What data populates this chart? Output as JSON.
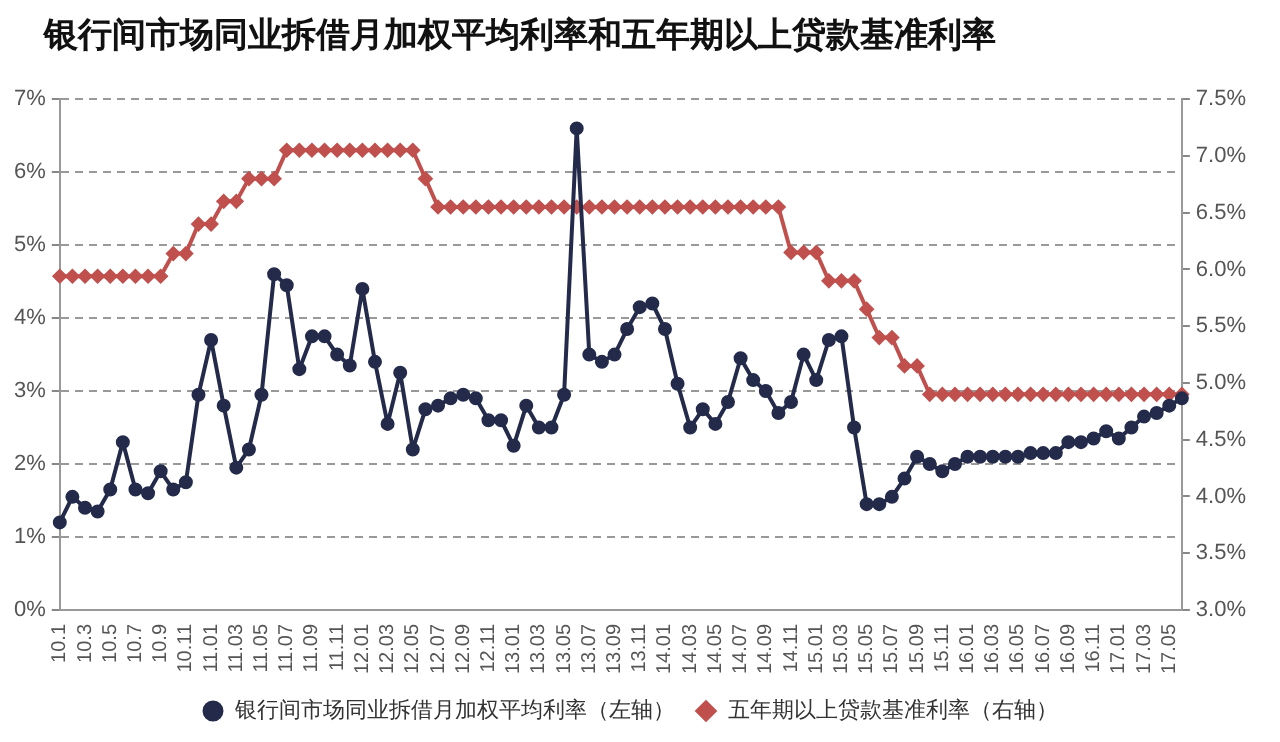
{
  "chart_data": {
    "type": "line",
    "title": "银行间市场同业拆借月加权平均利率和五年期以上贷款基准利率",
    "categories": [
      "10.1",
      null,
      "10.3",
      null,
      "10.5",
      null,
      "10.7",
      null,
      "10.9",
      null,
      "10.11",
      null,
      "11.01",
      null,
      "11.03",
      null,
      "11.05",
      null,
      "11.07",
      null,
      "11.09",
      null,
      "11.11",
      null,
      "12.01",
      null,
      "12.03",
      null,
      "12.05",
      null,
      "12.07",
      null,
      "12.09",
      null,
      "12.11",
      null,
      "13.01",
      null,
      "13.03",
      null,
      "13.05",
      null,
      "13.07",
      null,
      "13.09",
      null,
      "13.11",
      null,
      "14.01",
      null,
      "14.03",
      null,
      "14.05",
      null,
      "14.07",
      null,
      "14.09",
      null,
      "14.11",
      null,
      "15.01",
      null,
      "15.03",
      null,
      "15.05",
      null,
      "15.07",
      null,
      "15.09",
      null,
      "15.11",
      null,
      "16.01",
      null,
      "16.03",
      null,
      "16.05",
      null,
      "16.07",
      null,
      "16.09",
      null,
      "16.11",
      null,
      "17.01",
      null,
      "17.03",
      null,
      "17.05",
      null
    ],
    "series": [
      {
        "name": "银行间市场同业拆借月加权平均利率（左轴）",
        "color": "#232a4a",
        "marker": "circle",
        "values": [
          1.2,
          1.55,
          1.4,
          1.35,
          1.65,
          2.3,
          1.65,
          1.6,
          1.9,
          1.65,
          1.75,
          2.95,
          3.7,
          2.8,
          1.95,
          2.2,
          2.95,
          4.6,
          4.45,
          3.3,
          3.75,
          3.75,
          3.5,
          3.35,
          4.4,
          3.4,
          2.55,
          3.25,
          2.2,
          2.75,
          2.8,
          2.9,
          2.95,
          2.9,
          2.6,
          2.6,
          2.25,
          2.8,
          2.5,
          2.5,
          2.95,
          6.6,
          3.5,
          3.4,
          3.5,
          3.85,
          4.15,
          4.2,
          3.85,
          3.1,
          2.5,
          2.75,
          2.55,
          2.85,
          3.45,
          3.15,
          3.0,
          2.7,
          2.85,
          3.5,
          3.15,
          3.7,
          3.75,
          2.5,
          1.45,
          1.45,
          1.55,
          1.8,
          2.1,
          2.0,
          1.9,
          2.0,
          2.1,
          2.1,
          2.1,
          2.1,
          2.1,
          2.15,
          2.15,
          2.15,
          2.3,
          2.3,
          2.35,
          2.45,
          2.35,
          2.5,
          2.65,
          2.7,
          2.8,
          2.9
        ]
      },
      {
        "name": "五年期以上贷款基准利率（右轴）",
        "color": "#c0504d",
        "marker": "diamond",
        "axis": "y2",
        "values": [
          5.94,
          5.94,
          5.94,
          5.94,
          5.94,
          5.94,
          5.94,
          5.94,
          5.94,
          6.14,
          6.14,
          6.4,
          6.4,
          6.6,
          6.6,
          6.8,
          6.8,
          6.8,
          7.05,
          7.05,
          7.05,
          7.05,
          7.05,
          7.05,
          7.05,
          7.05,
          7.05,
          7.05,
          7.05,
          6.8,
          6.55,
          6.55,
          6.55,
          6.55,
          6.55,
          6.55,
          6.55,
          6.55,
          6.55,
          6.55,
          6.55,
          6.55,
          6.55,
          6.55,
          6.55,
          6.55,
          6.55,
          6.55,
          6.55,
          6.55,
          6.55,
          6.55,
          6.55,
          6.55,
          6.55,
          6.55,
          6.55,
          6.55,
          6.15,
          6.15,
          6.15,
          5.9,
          5.9,
          5.9,
          5.65,
          5.4,
          5.4,
          5.15,
          5.15,
          4.9,
          4.9,
          4.9,
          4.9,
          4.9,
          4.9,
          4.9,
          4.9,
          4.9,
          4.9,
          4.9,
          4.9,
          4.9,
          4.9,
          4.9,
          4.9,
          4.9,
          4.9,
          4.9,
          4.9,
          4.9
        ]
      }
    ],
    "ylim": [
      0,
      7
    ],
    "yticks": [
      {
        "value": 0,
        "label": "0%"
      },
      {
        "value": 1,
        "label": "1%"
      },
      {
        "value": 2,
        "label": "2%"
      },
      {
        "value": 3,
        "label": "3%"
      },
      {
        "value": 4,
        "label": "4%"
      },
      {
        "value": 5,
        "label": "5%"
      },
      {
        "value": 6,
        "label": "6%"
      },
      {
        "value": 7,
        "label": "7%"
      }
    ],
    "y2lim": [
      3.0,
      7.5
    ],
    "y2ticks": [
      {
        "value": 3.0,
        "label": "3.0%"
      },
      {
        "value": 3.5,
        "label": "3.5%"
      },
      {
        "value": 4.0,
        "label": "4.0%"
      },
      {
        "value": 4.5,
        "label": "4.5%"
      },
      {
        "value": 5.0,
        "label": "5.0%"
      },
      {
        "value": 5.5,
        "label": "5.5%"
      },
      {
        "value": 6.0,
        "label": "6.0%"
      },
      {
        "value": 6.5,
        "label": "6.5%"
      },
      {
        "value": 7.0,
        "label": "7.0%"
      },
      {
        "value": 7.5,
        "label": "7.5%"
      }
    ],
    "grid": "y",
    "legend": "bottom"
  }
}
